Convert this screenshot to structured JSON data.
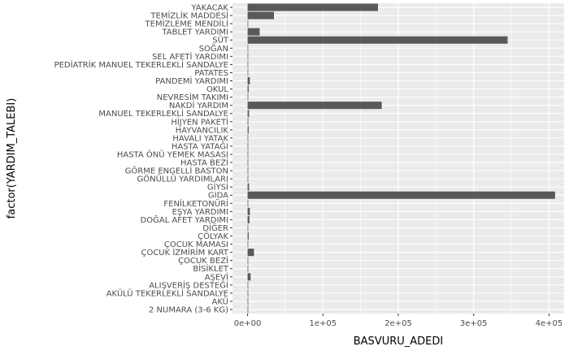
{
  "chart_data": {
    "type": "bar",
    "orientation": "horizontal",
    "title": "",
    "xlabel": "BASVURU_ADEDI",
    "ylabel": "factor(YARDIM_TALEBI)",
    "xlim": [
      -20000,
      420000
    ],
    "x_ticks": [
      0,
      100000,
      200000,
      300000,
      400000
    ],
    "x_tick_labels": [
      "0e+00",
      "1e+05",
      "2e+05",
      "3e+05",
      "4e+05"
    ],
    "grid": true,
    "legend": "none",
    "categories": [
      "2 NUMARA  (3-6 KG)",
      "AKÜ",
      "AKÜLÜ TEKERLEKLİ SANDALYE",
      "ALIŞVERİŞ DESTEĞİ",
      "AŞEVİ",
      "BİSİKLET",
      "ÇOCUK BEZİ",
      "ÇOCUK İZMİRİM KART",
      "ÇOCUK MAMASI",
      "ÇÖLYAK",
      "DİĞER",
      "DOĞAL AFET YARDIMI",
      "EŞYA YARDIMI",
      "FENİLKETONÜRİ",
      "GIDA",
      "GİYSİ",
      "GÖNÜLLÜ YARDIMLARI",
      "GÖRME ENGELLİ BASTON",
      "HASTA BEZİ",
      "HASTA ÖNÜ YEMEK MASASI",
      "HASTA YATAĞI",
      "HAVALI YATAK",
      "HAYVANCILIK",
      "HİJYEN PAKETİ",
      "MANUEL TEKERLEKLİ SANDALYE",
      "NAKDİ YARDIM",
      "NEVRESİM TAKIMI",
      "OKUL",
      "PANDEMİ YARDIMI",
      "PATATES",
      "PEDİATRİK MANUEL TEKERLEKLİ SANDALYE",
      "SEL AFETİ YARDIMI",
      "SOĞAN",
      "SÜT",
      "TABLET YARDIMI",
      "TEMİZLEME MENDİLİ",
      "TEMİZLİK MADDESİ",
      "YAKACAK"
    ],
    "values": [
      50,
      150,
      300,
      100,
      4000,
      400,
      500,
      8500,
      150,
      1500,
      400,
      2500,
      3000,
      300,
      408000,
      2000,
      100,
      50,
      700,
      100,
      600,
      800,
      1500,
      1000,
      2000,
      178000,
      900,
      1500,
      3000,
      50,
      50,
      100,
      150,
      345000,
      16000,
      200,
      35000,
      173000
    ],
    "bar_color": "#595959",
    "panel_background": "#ebebeb",
    "gridline_color": "#ffffff"
  }
}
